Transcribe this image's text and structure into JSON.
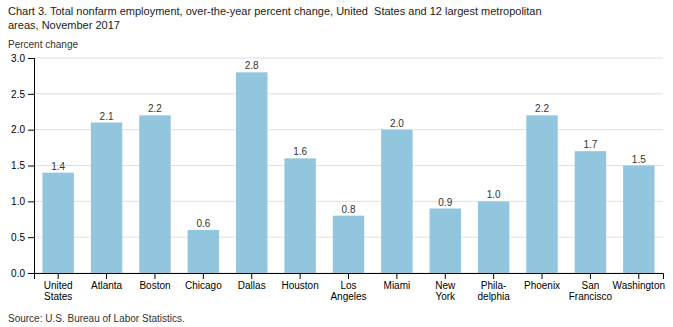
{
  "chart_data": {
    "type": "bar",
    "title": "Chart 3. Total nonfarm employment, over-the-year percent change, United  States and 12 largest metropolitan\nareas, November 2017",
    "ylabel": "Percent change",
    "source": "Source: U.S. Bureau of Labor Statistics.",
    "categories": [
      "United\nStates",
      "Atlanta",
      "Boston",
      "Chicago",
      "Dallas",
      "Houston",
      "Los\nAngeles",
      "Miami",
      "New\nYork",
      "Phila-\ndelphia",
      "Phoenix",
      "San\nFrancisco",
      "Washington"
    ],
    "values": [
      1.4,
      2.1,
      2.2,
      0.6,
      2.8,
      1.6,
      0.8,
      2.0,
      0.9,
      1.0,
      2.2,
      1.7,
      1.5
    ],
    "value_labels": [
      "1.4",
      "2.1",
      "2.2",
      "0.6",
      "2.8",
      "1.6",
      "0.8",
      "2.0",
      "0.9",
      "1.0",
      "2.2",
      "1.7",
      "1.5"
    ],
    "color": "#92C5DE",
    "ylim": [
      0,
      3.0
    ],
    "yticks": [
      {
        "value": 0,
        "label": "0.0"
      },
      0.5,
      {
        "value": 1,
        "label": "1.0"
      },
      1.5,
      {
        "value": 2,
        "label": "2.0"
      },
      2.5,
      {
        "value": 3,
        "label": "3.0"
      }
    ],
    "grid": true,
    "data_labels": true
  }
}
